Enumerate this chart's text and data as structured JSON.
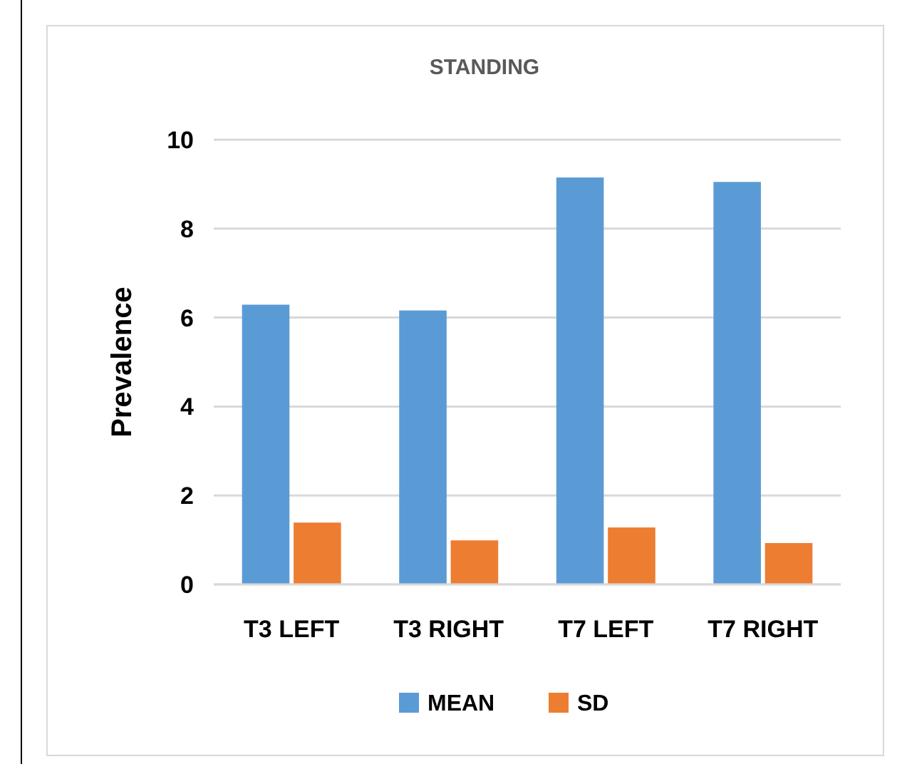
{
  "chart_data": {
    "type": "bar",
    "title": "STANDING",
    "ylabel": "Prevalence",
    "categories": [
      "T3 LEFT",
      "T3 RIGHT",
      "T7 LEFT",
      "T7 RIGHT"
    ],
    "series": [
      {
        "name": "MEAN",
        "color": "#5b9bd5",
        "values": [
          6.29,
          6.16,
          9.15,
          9.05
        ]
      },
      {
        "name": "SD",
        "color": "#ed7d31",
        "values": [
          1.39,
          0.99,
          1.28,
          0.93
        ]
      }
    ],
    "ylim": [
      0,
      10
    ],
    "yticks": [
      0,
      2,
      4,
      6,
      8,
      10
    ],
    "grid": "y",
    "legend": "bottom"
  }
}
